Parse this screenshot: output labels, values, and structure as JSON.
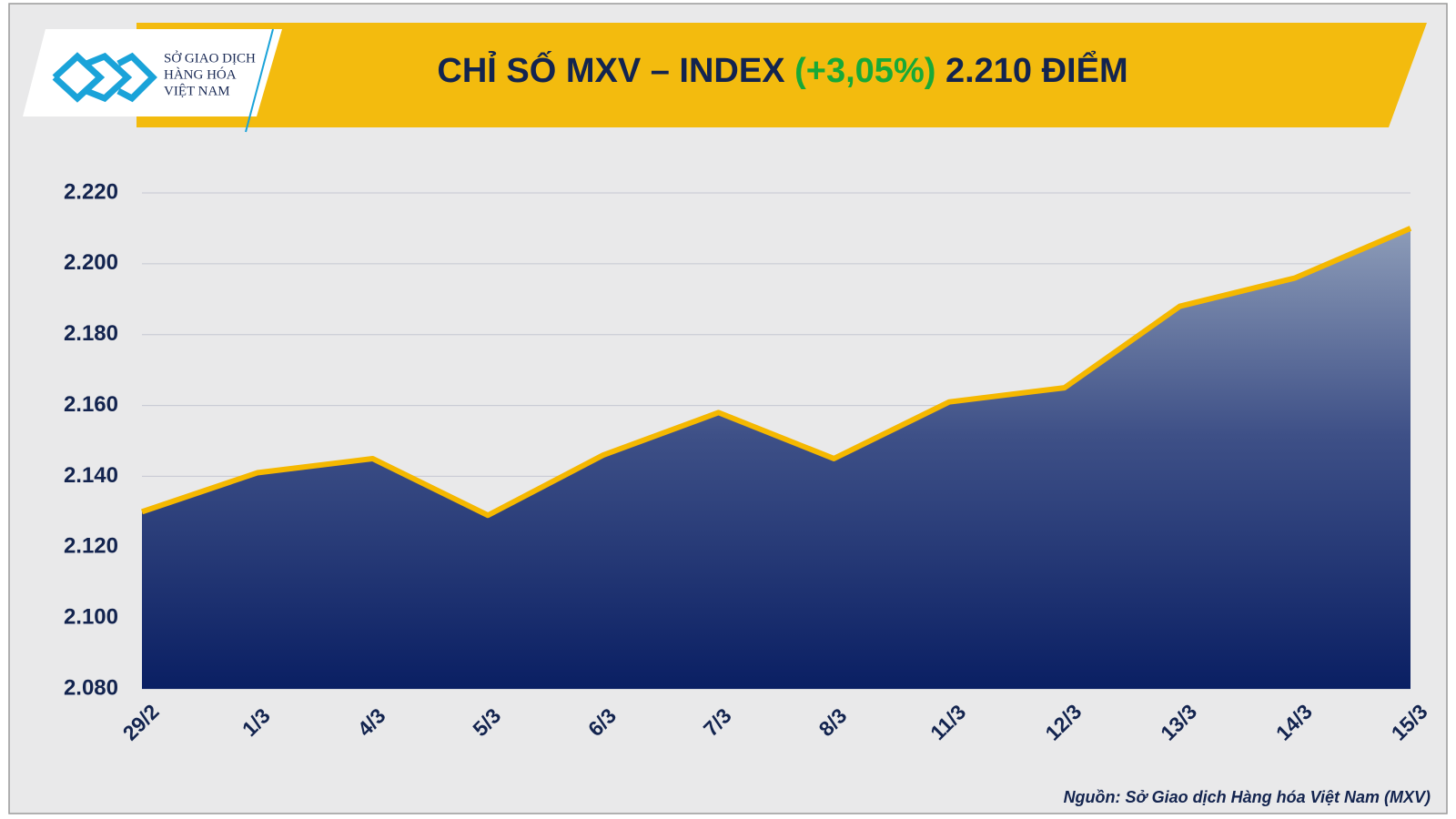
{
  "logo": {
    "lines": [
      "SỞ GIAO DỊCH",
      "HÀNG HÓA",
      "VIỆT NAM"
    ]
  },
  "chart_data": {
    "type": "area",
    "title": "CHỈ SỐ MXV – INDEX",
    "title_change": "(+3,05%)",
    "title_value": "2.210 ĐIỂM",
    "categories": [
      "29/2",
      "1/3",
      "4/3",
      "5/3",
      "6/3",
      "7/3",
      "8/3",
      "11/3",
      "12/3",
      "13/3",
      "14/3",
      "15/3"
    ],
    "values": [
      2130,
      2141,
      2145,
      2129,
      2146,
      2158,
      2145,
      2161,
      2165,
      2188,
      2196,
      2210
    ],
    "color": "#f5b800",
    "ylim": [
      2080,
      2220
    ],
    "yticks": [
      {
        "value": 2080,
        "label": "2.080"
      },
      {
        "value": 2100,
        "label": "2.100"
      },
      {
        "value": 2120,
        "label": "2.120"
      },
      {
        "value": 2140,
        "label": "2.140"
      },
      {
        "value": 2160,
        "label": "2.160"
      },
      {
        "value": 2180,
        "label": "2.180"
      },
      {
        "value": 2200,
        "label": "2.200"
      },
      {
        "value": 2220,
        "label": "2.220"
      }
    ],
    "grid": true
  },
  "source": "Nguồn: Sở Giao dịch Hàng hóa Việt Nam (MXV)"
}
